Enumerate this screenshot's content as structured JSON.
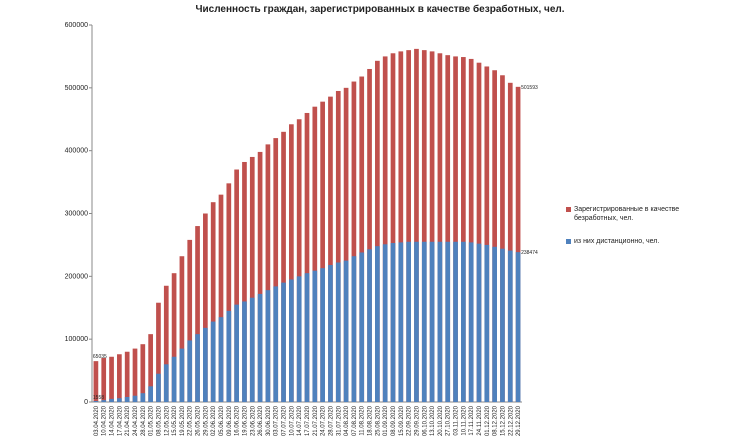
{
  "chart_data": {
    "type": "overlap-bar",
    "title": "Численность граждан, зарегистрированных в качестве безработных, чел.",
    "categories": [
      "03.04.2020",
      "10.04.2020",
      "14.04.2020",
      "17.04.2020",
      "21.04.2020",
      "24.04.2020",
      "28.04.2020",
      "01.05.2020",
      "08.05.2020",
      "12.05.2020",
      "15.05.2020",
      "19.05.2020",
      "22.05.2020",
      "26.05.2020",
      "29.05.2020",
      "02.06.2020",
      "05.06.2020",
      "09.06.2020",
      "16.06.2020",
      "19.06.2020",
      "23.06.2020",
      "26.06.2020",
      "30.06.2020",
      "03.07.2020",
      "07.07.2020",
      "10.07.2020",
      "14.07.2020",
      "17.07.2020",
      "21.07.2020",
      "24.07.2020",
      "28.07.2020",
      "31.07.2020",
      "04.08.2020",
      "07.08.2020",
      "11.08.2020",
      "18.08.2020",
      "25.08.2020",
      "01.09.2020",
      "08.09.2020",
      "15.09.2020",
      "22.09.2020",
      "29.09.2020",
      "06.10.2020",
      "13.10.2020",
      "20.10.2020",
      "27.10.2020",
      "03.11.2020",
      "10.11.2020",
      "17.11.2020",
      "24.11.2020",
      "01.12.2020",
      "08.12.2020",
      "15.12.2020",
      "22.12.2020",
      "29.12.2020"
    ],
    "series": [
      {
        "name": "Зарегистрированные  в качестве безработных,  чел.",
        "color": "#c0504d",
        "values": [
          65035,
          70000,
          72000,
          76000,
          80000,
          85000,
          92000,
          108000,
          158000,
          185000,
          205000,
          232000,
          258000,
          280000,
          300000,
          318000,
          330000,
          348000,
          370000,
          382000,
          390000,
          398000,
          410000,
          420000,
          430000,
          442000,
          450000,
          460000,
          470000,
          478000,
          486000,
          495000,
          500000,
          510000,
          518000,
          530000,
          543000,
          550000,
          555000,
          558000,
          560000,
          562000,
          560000,
          558000,
          555000,
          552000,
          550000,
          549000,
          546000,
          540000,
          534000,
          528000,
          520000,
          508000,
          501593
        ]
      },
      {
        "name": "из них дистанционно,  чел.",
        "color": "#4f81bd",
        "values": [
          1558,
          3000,
          5000,
          6000,
          8000,
          10000,
          14000,
          25000,
          45000,
          60000,
          72000,
          85000,
          98000,
          108000,
          118000,
          128000,
          135000,
          145000,
          155000,
          160000,
          166000,
          172000,
          178000,
          184000,
          190000,
          195000,
          200000,
          205000,
          209000,
          213000,
          218000,
          222000,
          225000,
          232000,
          238000,
          243000,
          248000,
          251000,
          253000,
          254000,
          255000,
          255000,
          255000,
          255000,
          255000,
          255000,
          255000,
          255000,
          254000,
          252000,
          250000,
          247000,
          244000,
          241000,
          238474
        ]
      }
    ],
    "ylim": [
      0,
      600000
    ],
    "yticks": [
      0,
      100000,
      200000,
      300000,
      400000,
      500000,
      600000
    ],
    "grid": false
  }
}
